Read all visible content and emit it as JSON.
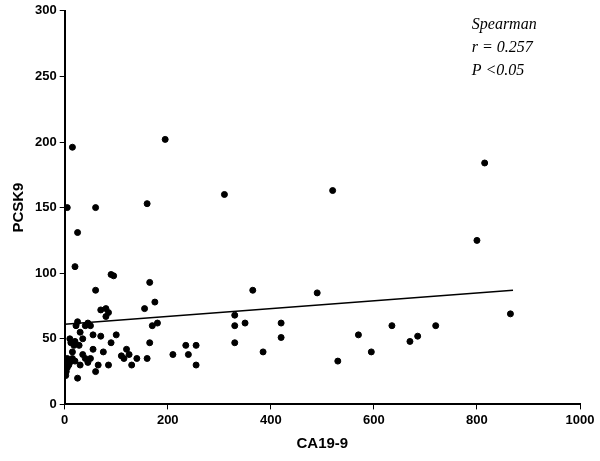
{
  "chart_data": {
    "type": "scatter",
    "x_label": "CA19-9",
    "y_label": "PCSK9",
    "annotations": [
      "Spearman",
      "r = 0.257",
      "P <0.05"
    ],
    "x": [
      5,
      15,
      20,
      25,
      10,
      5,
      3,
      8,
      12,
      20,
      22,
      25,
      20,
      15,
      30,
      25,
      35,
      30,
      40,
      45,
      50,
      55,
      55,
      60,
      60,
      65,
      60,
      70,
      70,
      75,
      80,
      80,
      85,
      85,
      90,
      90,
      95,
      100,
      110,
      115,
      125,
      130,
      140,
      155,
      160,
      160,
      165,
      165,
      170,
      175,
      180,
      195,
      210,
      235,
      240,
      255,
      255,
      310,
      330,
      330,
      330,
      350,
      365,
      385,
      420,
      420,
      490,
      520,
      530,
      570,
      595,
      635,
      670,
      685,
      720,
      800,
      815,
      865,
      2,
      5,
      10,
      15,
      18,
      8,
      40,
      45,
      35,
      28,
      50,
      120
    ],
    "values": [
      150,
      196,
      105,
      131,
      50,
      28,
      25,
      30,
      47,
      48,
      60,
      63,
      33,
      35,
      30,
      20,
      38,
      55,
      35,
      32,
      60,
      53,
      42,
      87,
      25,
      30,
      150,
      72,
      52,
      40,
      73,
      67,
      70,
      30,
      47,
      99,
      98,
      53,
      37,
      35,
      38,
      30,
      35,
      73,
      153,
      35,
      47,
      93,
      60,
      78,
      62,
      202,
      38,
      45,
      38,
      45,
      30,
      160,
      68,
      60,
      47,
      62,
      87,
      40,
      62,
      51,
      85,
      163,
      33,
      53,
      40,
      60,
      48,
      52,
      60,
      125,
      184,
      69,
      22,
      35,
      32,
      40,
      45,
      33,
      60,
      62,
      50,
      45,
      35,
      42
    ],
    "trend_line": {
      "x": [
        0,
        870
      ],
      "y": [
        61,
        87
      ]
    },
    "color": "#000000",
    "marker": "circle",
    "line_style": "solid",
    "xlim": [
      0,
      1000
    ],
    "xticks": [
      0,
      200,
      400,
      600,
      800,
      1000
    ],
    "ylim": [
      0,
      300
    ],
    "yticks": [
      0,
      50,
      100,
      150,
      200,
      250,
      300
    ],
    "grid": false
  }
}
